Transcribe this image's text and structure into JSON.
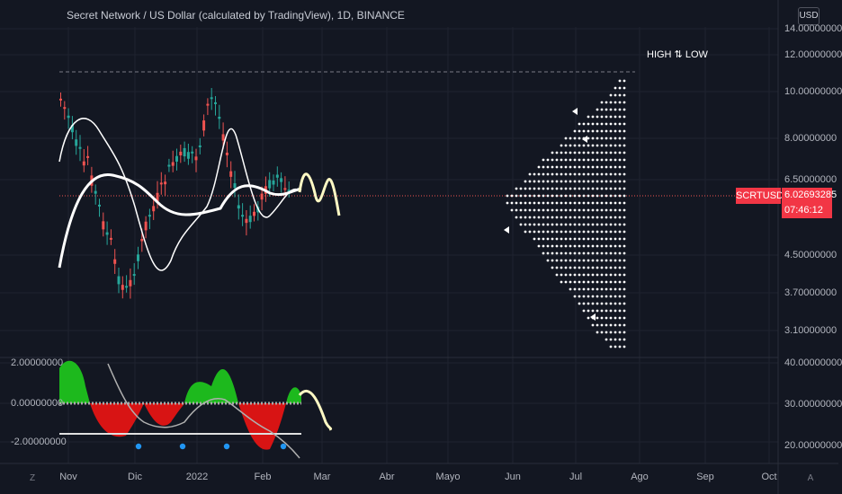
{
  "header": {
    "title": "Secret Network / US Dollar (calculated by TradingView), 1D, BINANCE",
    "currency_button": "USD",
    "annotation": "HIGH ⇅ LOW"
  },
  "price_axis": {
    "ticks": [
      "14.00000000",
      "12.00000000",
      "10.00000000",
      "8.00000000",
      "6.50000000",
      "4.50000000",
      "3.70000000",
      "3.10000000"
    ]
  },
  "last_price": {
    "symbol": "SCRTUSD",
    "value": "6.02693285",
    "countdown": "07:46:12",
    "color": "#f23645"
  },
  "oscillator": {
    "left_ticks": [
      "2.00000000",
      "0.00000000",
      "-2.00000000"
    ],
    "right_ticks": [
      "40.00000000",
      "30.00000000",
      "20.00000000"
    ]
  },
  "time_axis": {
    "labels": [
      "Nov",
      "Dic",
      "2022",
      "Feb",
      "Mar",
      "Abr",
      "Mayo",
      "Jun",
      "Jul",
      "Ago",
      "Sep",
      "Oct"
    ]
  },
  "corners": {
    "left_icon": "Z",
    "right_icon": "A"
  },
  "colors": {
    "background": "#131722",
    "up": "#26a69a",
    "down": "#ef5350",
    "projection": "#fff9c4",
    "green_area": "#1db91d",
    "red_area": "#d81414"
  }
}
